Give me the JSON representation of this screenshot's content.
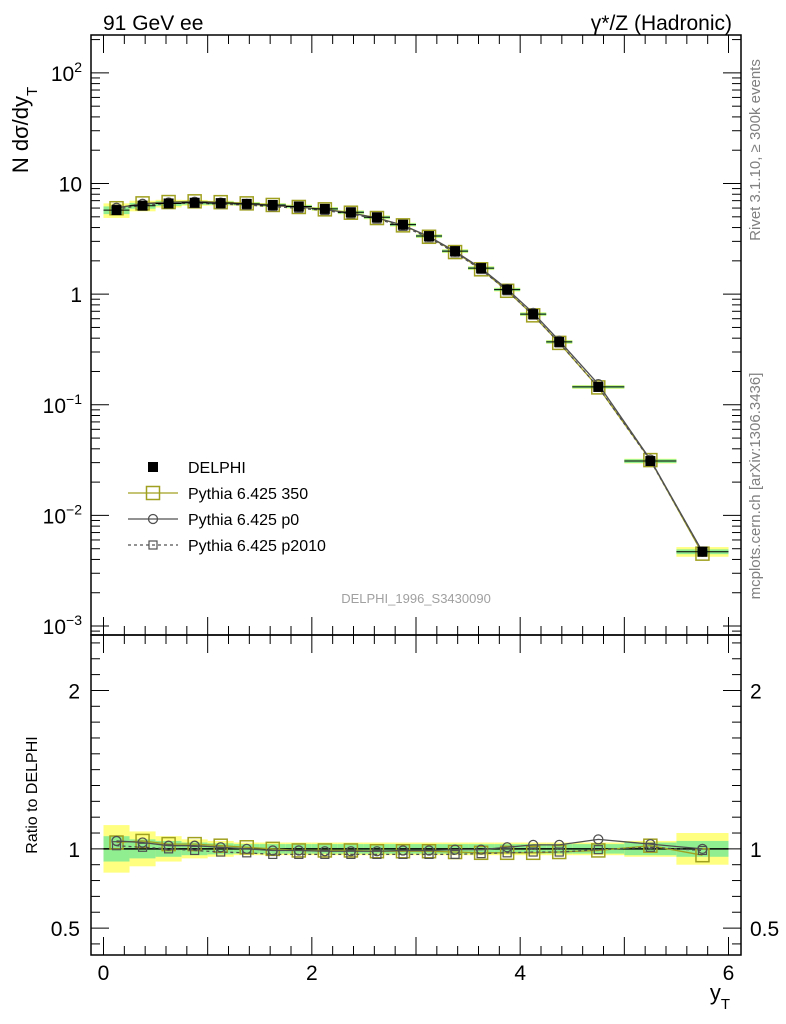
{
  "header": {
    "left": "91 GeV ee",
    "right": "γ*/Z (Hadronic)"
  },
  "side": {
    "rivet": "Rivet 3.1.10, ≥ 300k events",
    "mcplots": "mcplots.cern.ch [arXiv:1306.3436]"
  },
  "chart_data": {
    "type": "line",
    "analysis_tag": "DELPHI_1996_S3430090",
    "ylabel": "N dσ/dy_T",
    "ratio_ylabel": "Ratio to DELPHI",
    "xlabel": "y_T",
    "xlim": [
      -0.12,
      6.12
    ],
    "ylim": [
      0.00083,
      220
    ],
    "yscale": "log",
    "ratio_ylim": [
      0.33,
      2.35
    ],
    "x_ticks": [
      "0",
      "2",
      "4",
      "6"
    ],
    "y_ticks": [
      {
        "mantissa": "10",
        "exp": "−3",
        "value": 0.001
      },
      {
        "mantissa": "10",
        "exp": "−2",
        "value": 0.01
      },
      {
        "mantissa": "10",
        "exp": "−1",
        "value": 0.1
      },
      {
        "mantissa": "1",
        "exp": "",
        "value": 1
      },
      {
        "mantissa": "10",
        "exp": "",
        "value": 10
      },
      {
        "mantissa": "10",
        "exp": "2",
        "value": 100
      }
    ],
    "ratio_ticks": [
      "0.5",
      "1",
      "2"
    ],
    "legend_position": "middle-left",
    "x": [
      0.125,
      0.375,
      0.625,
      0.875,
      1.125,
      1.375,
      1.625,
      1.875,
      2.125,
      2.375,
      2.625,
      2.875,
      3.125,
      3.375,
      3.625,
      3.875,
      4.125,
      4.375,
      4.75,
      5.25,
      5.75
    ],
    "bin_edges": [
      0,
      0.25,
      0.5,
      0.75,
      1.0,
      1.25,
      1.5,
      1.75,
      2.0,
      2.25,
      2.5,
      2.75,
      3.0,
      3.25,
      3.5,
      3.75,
      4.0,
      4.25,
      4.5,
      5.0,
      5.5,
      6.0
    ],
    "data": {
      "name": "DELPHI",
      "values": [
        5.75,
        6.3,
        6.6,
        6.7,
        6.65,
        6.55,
        6.4,
        6.2,
        5.9,
        5.5,
        4.95,
        4.25,
        3.35,
        2.45,
        1.72,
        1.1,
        0.66,
        0.37,
        0.145,
        0.031,
        0.0047
      ],
      "band_inner": [
        0.08,
        0.06,
        0.05,
        0.04,
        0.035,
        0.03,
        0.03,
        0.03,
        0.03,
        0.03,
        0.03,
        0.03,
        0.03,
        0.03,
        0.03,
        0.03,
        0.03,
        0.03,
        0.03,
        0.04,
        0.05
      ],
      "band_outer": [
        0.15,
        0.11,
        0.08,
        0.06,
        0.05,
        0.04,
        0.04,
        0.04,
        0.04,
        0.04,
        0.04,
        0.04,
        0.04,
        0.04,
        0.04,
        0.04,
        0.04,
        0.04,
        0.04,
        0.05,
        0.1
      ]
    },
    "series": [
      {
        "name": "Pythia 6.425 350",
        "color": "#a0a020",
        "marker": "square-large",
        "dash": "none",
        "ratio": [
          1.04,
          1.05,
          1.03,
          1.03,
          1.02,
          1.01,
          1.0,
          0.99,
          0.99,
          0.99,
          0.985,
          0.985,
          0.985,
          0.98,
          0.975,
          0.975,
          0.975,
          0.98,
          0.99,
          1.02,
          0.96
        ]
      },
      {
        "name": "Pythia 6.425 p0",
        "color": "#505050",
        "marker": "circle",
        "dash": "none",
        "ratio": [
          1.05,
          1.04,
          1.02,
          1.02,
          1.01,
          1.0,
          0.99,
          0.99,
          0.985,
          0.985,
          0.985,
          0.99,
          0.99,
          0.995,
          0.995,
          1.01,
          1.025,
          1.025,
          1.06,
          1.03,
          1.0
        ]
      },
      {
        "name": "Pythia 6.425 p2010",
        "color": "#505050",
        "marker": "square-small",
        "dash": "3,3",
        "ratio": [
          1.02,
          1.01,
          1.0,
          0.99,
          0.98,
          0.975,
          0.965,
          0.965,
          0.965,
          0.965,
          0.965,
          0.965,
          0.965,
          0.965,
          0.97,
          0.975,
          0.98,
          0.98,
          0.995,
          1.01,
          0.99
        ]
      }
    ]
  },
  "colors": {
    "band_inner": "#90ee90",
    "band_outer": "#ffff80",
    "data_marker": "#000000",
    "side_text": "#808080"
  }
}
